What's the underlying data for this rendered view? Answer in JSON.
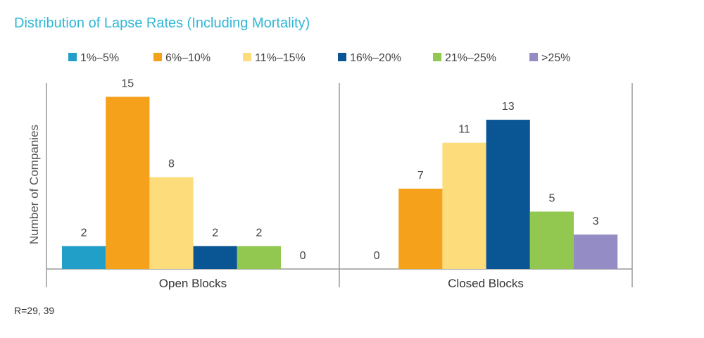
{
  "chart_data": {
    "type": "bar",
    "title": "Distribution of Lapse Rates (Including Mortality)",
    "ylabel": "Number of Companies",
    "xlabel": "",
    "categories": [
      "Open Blocks",
      "Closed Blocks"
    ],
    "series": [
      {
        "name": "1%–5%",
        "color": "#229fc8",
        "values": [
          2,
          0
        ]
      },
      {
        "name": "6%–10%",
        "color": "#f5a11c",
        "values": [
          15,
          7
        ]
      },
      {
        "name": "11%–15%",
        "color": "#fcdc7b",
        "values": [
          8,
          11
        ]
      },
      {
        "name": "16%–20%",
        "color": "#0a5594",
        "values": [
          2,
          13
        ]
      },
      {
        "name": "21%–25%",
        "color": "#92c84f",
        "values": [
          2,
          5
        ]
      },
      {
        "name": ">25%",
        "color": "#948cc4",
        "values": [
          0,
          3
        ]
      }
    ],
    "ylim": [
      0,
      15
    ],
    "grid": false,
    "legend": "top",
    "footnote": "R=29, 39",
    "title_color": "#2fb7d5"
  }
}
